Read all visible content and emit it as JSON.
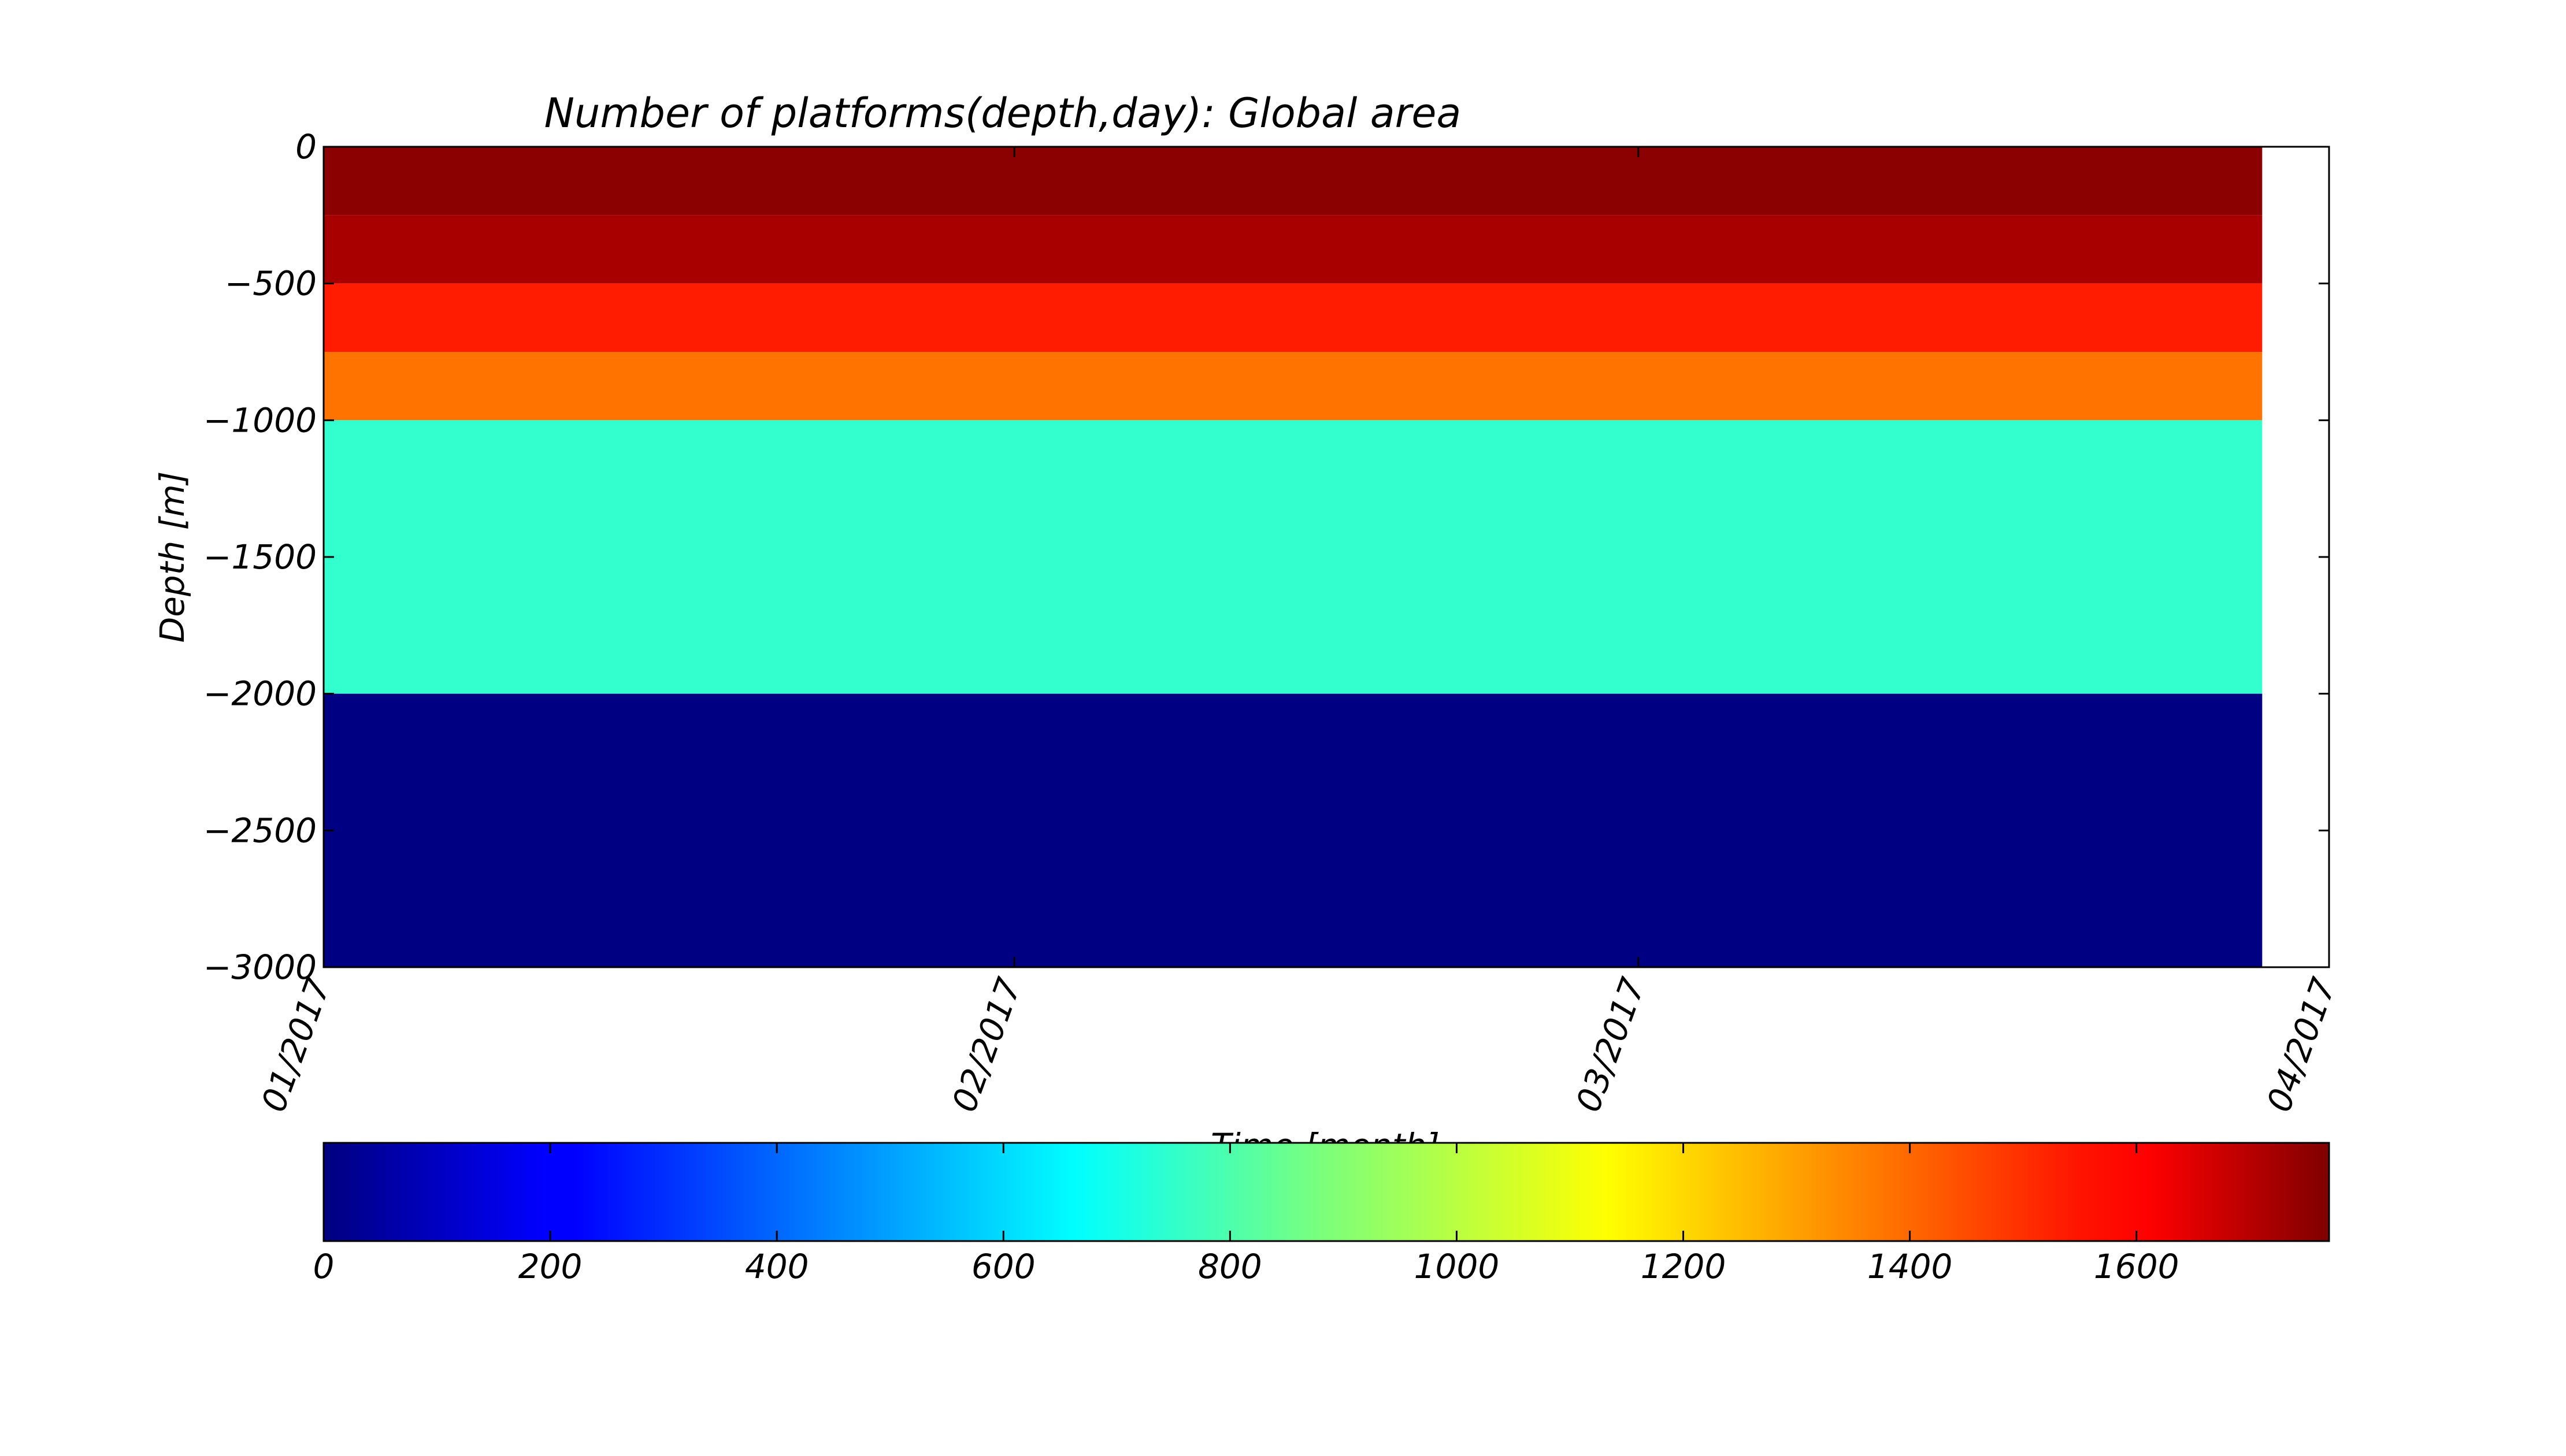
{
  "chart_data": [
    {
      "type": "heatmap",
      "title": "Number of platforms(depth,day): Global area",
      "xlabel": "Time [month]",
      "ylabel": "Depth [m]",
      "x_tick_labels": [
        "01/2017",
        "02/2017",
        "03/2017",
        "04/2017"
      ],
      "xlim": [
        "2017-01-01",
        "2017-04-01"
      ],
      "data_end": "2017-03-29",
      "y_ticks": [
        0,
        -500,
        -1000,
        -1500,
        -2000,
        -2500,
        -3000
      ],
      "y_tick_labels": [
        "0",
        "−500",
        "−1000",
        "−1500",
        "−2000",
        "−2500",
        "−3000"
      ],
      "ylim": [
        -3000,
        0
      ],
      "depth_layers": [
        {
          "from": 0,
          "to": -250,
          "value": 1750
        },
        {
          "from": -250,
          "to": -500,
          "value": 1700
        },
        {
          "from": -500,
          "to": -750,
          "value": 1500
        },
        {
          "from": -750,
          "to": -1000,
          "value": 1350
        },
        {
          "from": -1000,
          "to": -2000,
          "value": 750
        },
        {
          "from": -2000,
          "to": -3000,
          "value": 5
        }
      ],
      "grid": false
    },
    {
      "type": "colorbar",
      "colormap": "jet",
      "range": [
        0,
        1770
      ],
      "tick_values": [
        0,
        200,
        400,
        600,
        800,
        1000,
        1200,
        1400,
        1600
      ],
      "tick_labels": [
        "0",
        "200",
        "400",
        "600",
        "800",
        "1000",
        "1200",
        "1400",
        "1600"
      ],
      "orientation": "horizontal",
      "placement": "bottom"
    }
  ]
}
